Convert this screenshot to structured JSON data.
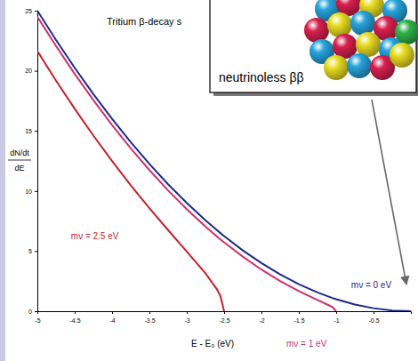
{
  "chart_data": {
    "type": "line",
    "title": "Tritium β-decay s",
    "xlabel": "E - E₀  (eV)",
    "ylabel": [
      "dN/dt",
      "dE"
    ],
    "x": [
      -5,
      -4.75,
      -4.5,
      -4.25,
      -4,
      -3.75,
      -3.5,
      -3.25,
      -3,
      -2.75,
      -2.6,
      -2.55,
      -2.5,
      -2.25,
      -2,
      -1.75,
      -1.5,
      -1.25,
      -1.1,
      -1.05,
      -1,
      -0.75,
      -0.5,
      -0.25,
      0
    ],
    "series": [
      {
        "name": "mν = 0 eV",
        "color": "#1c2a8a",
        "values": [
          25,
          22.56,
          20.25,
          18.06,
          16,
          14.06,
          12.25,
          10.56,
          9,
          7.56,
          6.76,
          6.5,
          6.25,
          5.06,
          4,
          3.06,
          2.25,
          1.56,
          1.21,
          1.1,
          1,
          0.56,
          0.25,
          0.06,
          0
        ]
      },
      {
        "name": "mν = 1 eV",
        "color": "#d0306e",
        "values": [
          24.49,
          22.06,
          19.74,
          17.56,
          15.49,
          13.55,
          11.74,
          10.05,
          8.49,
          7.04,
          6.24,
          5.98,
          5.73,
          4.54,
          3.46,
          2.51,
          1.68,
          0.94,
          0.5,
          0.34,
          0,
          null,
          null,
          null,
          null
        ]
      },
      {
        "name": "mν = 2.5 eV",
        "color": "#c8202a",
        "values": [
          21.65,
          19.18,
          16.84,
          14.61,
          12.49,
          10.48,
          8.57,
          6.75,
          4.97,
          3.15,
          1.86,
          1.28,
          0,
          null,
          null,
          null,
          null,
          null,
          null,
          null,
          null,
          null,
          null,
          null,
          null
        ]
      }
    ],
    "xlim": [
      -5,
      0
    ],
    "ylim": [
      0,
      25
    ],
    "xticks": [
      -5,
      -4.5,
      -4,
      -3.5,
      -3,
      -2.5,
      -2,
      -1.5,
      -1,
      -0.5
    ],
    "yticks": [
      0,
      5,
      10,
      15,
      20,
      25
    ],
    "inset": {
      "label": "neutrinoless ββ"
    }
  }
}
